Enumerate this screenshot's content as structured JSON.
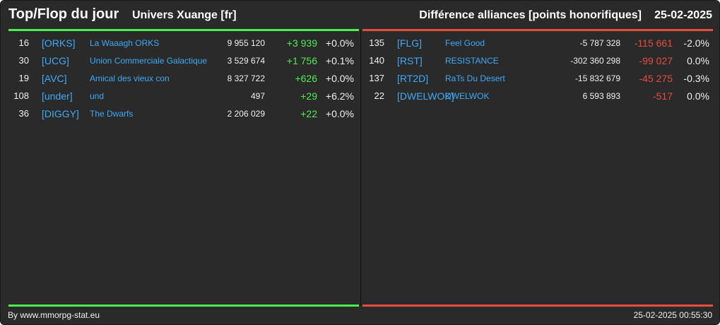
{
  "header": {
    "title": "Top/Flop du jour",
    "universe": "Univers Xuange [fr]",
    "heading": "Différence alliances [points honorifiques]",
    "date": "25-02-2025"
  },
  "colors": {
    "top_accent": "#4cf04c",
    "flop_accent": "#e74c3c",
    "tag_link": "#3fa9f5"
  },
  "top": [
    {
      "rank": "16",
      "tag": "[ORKS]",
      "name": "La Waaagh ORKS",
      "points": "9 955 120",
      "diff": "+3 939",
      "pct": "+0.0%"
    },
    {
      "rank": "30",
      "tag": "[UCG]",
      "name": "Union Commerciale Galactique",
      "points": "3 529 674",
      "diff": "+1 756",
      "pct": "+0.1%"
    },
    {
      "rank": "19",
      "tag": "[AVC]",
      "name": "Amical des vieux con",
      "points": "8 327 722",
      "diff": "+626",
      "pct": "+0.0%"
    },
    {
      "rank": "108",
      "tag": "[under]",
      "name": "und",
      "points": "497",
      "diff": "+29",
      "pct": "+6.2%"
    },
    {
      "rank": "36",
      "tag": "[DIGGY]",
      "name": "The Dwarfs",
      "points": "2 206 029",
      "diff": "+22",
      "pct": "+0.0%"
    }
  ],
  "flop": [
    {
      "rank": "135",
      "tag": "[FLG]",
      "name": "Feel Good",
      "points": "-5 787 328",
      "diff": "-115 661",
      "pct": "-2.0%"
    },
    {
      "rank": "140",
      "tag": "[RST]",
      "name": "RESISTANCE",
      "points": "-302 360 298",
      "diff": "-99 027",
      "pct": "0.0%"
    },
    {
      "rank": "137",
      "tag": "[RT2D]",
      "name": "RaTs Du Desert",
      "points": "-15 832 679",
      "diff": "-45 275",
      "pct": "-0.3%"
    },
    {
      "rank": "22",
      "tag": "[DWELWOK]",
      "name": "DWELWOK",
      "points": "6 593 893",
      "diff": "-517",
      "pct": "0.0%"
    }
  ],
  "footer": {
    "credit": "By www.mmorpg-stat.eu",
    "timestamp": "25-02-2025 00:55:30"
  }
}
